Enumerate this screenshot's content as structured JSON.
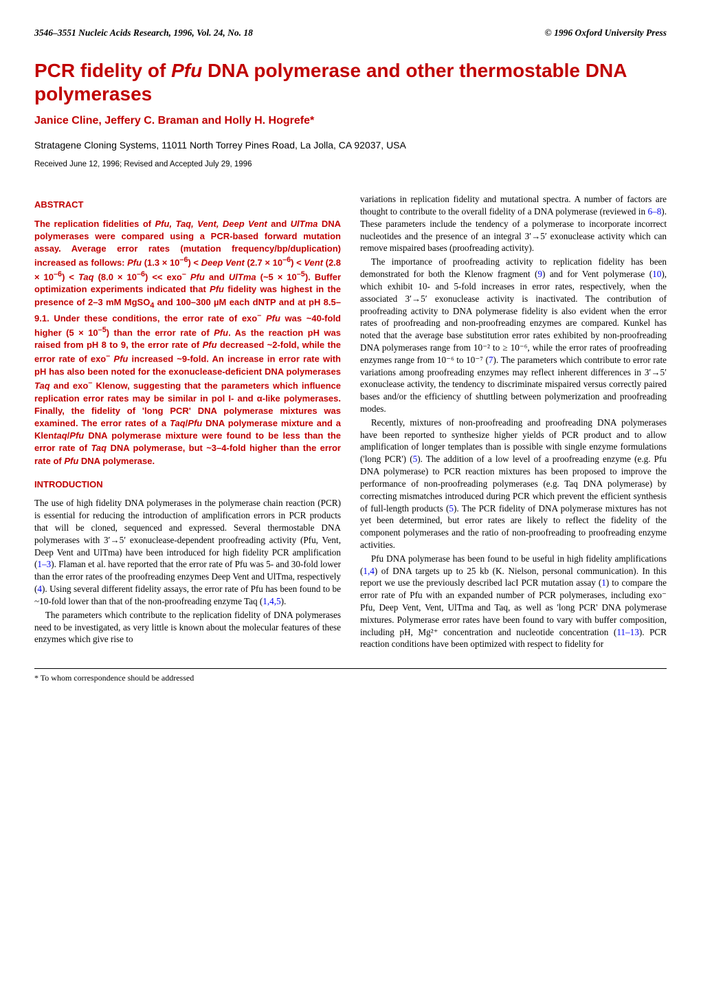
{
  "header": {
    "left": "3546–3551   Nucleic Acids Research, 1996, Vol. 24, No. 18",
    "right": "© 1996 Oxford University Press"
  },
  "title": "PCR fidelity of Pfu DNA polymerase and other thermostable DNA polymerases",
  "authors": "Janice Cline, Jeffery C. Braman and Holly H. Hogrefe*",
  "affiliation": "Stratagene Cloning Systems, 11011 North Torrey Pines Road, La Jolla, CA 92037, USA",
  "received": "Received June 12, 1996; Revised and Accepted July 29, 1996",
  "section_abstract_head": "ABSTRACT",
  "abstract_text": "The replication fidelities of Pfu, Taq, Vent, Deep Vent and UlTma DNA polymerases were compared using a PCR-based forward mutation assay. Average error rates (mutation frequency/bp/duplication) increased as follows: Pfu (1.3 × 10⁻⁶) < Deep Vent (2.7 × 10⁻⁶) < Vent (2.8 × 10⁻⁶) < Taq (8.0 × 10⁻⁶) << exo⁻ Pfu and UlTma (~5 × 10⁻⁵). Buffer optimization experiments indicated that Pfu fidelity was highest in the presence of 2–3 mM MgSO₄ and 100–300 µM each dNTP and at pH 8.5–9.1. Under these conditions, the error rate of exo⁻ Pfu was ~40-fold higher (5 × 10⁻⁵) than the error rate of Pfu. As the reaction pH was raised from pH 8 to 9, the error rate of Pfu decreased ~2-fold, while the error rate of exo⁻ Pfu increased ~9-fold. An increase in error rate with pH has also been noted for the exonuclease-deficient DNA polymerases Taq and exo⁻ Klenow, suggesting that the parameters which influence replication error rates may be similar in pol I- and α-like polymerases. Finally, the fidelity of 'long PCR' DNA polymerase mixtures was examined. The error rates of a Taq/Pfu DNA polymerase mixture and a Klentaq/Pfu DNA polymerase mixture were found to be less than the error rate of Taq DNA polymerase, but ~3–4-fold higher than the error rate of Pfu DNA polymerase.",
  "section_intro_head": "INTRODUCTION",
  "intro_p1_a": "The use of high fidelity DNA polymerases in the polymerase chain reaction (PCR) is essential for reducing the introduction of amplification errors in PCR products that will be cloned, sequenced and expressed. Several thermostable DNA polymerases with 3′→5′ exonuclease-dependent proofreading activity (Pfu, Vent, Deep Vent and UlTma) have been introduced for high fidelity PCR amplification (",
  "intro_p1_link1": "1–3",
  "intro_p1_b": "). Flaman et al. have reported that the error rate of Pfu was 5- and 30-fold lower than the error rates of the proofreading enzymes Deep Vent and UlTma, respectively (",
  "intro_p1_link2": "4",
  "intro_p1_c": "). Using several different fidelity assays, the error rate of Pfu has been found to be ~10-fold lower than that of the non-proofreading enzyme Taq (",
  "intro_p1_link3": "1,4,5",
  "intro_p1_d": ").",
  "intro_p2": "The parameters which contribute to the replication fidelity of DNA polymerases need to be investigated, as very little is known about the molecular features of these enzymes which give rise to",
  "right_p1_a": "variations in replication fidelity and mutational spectra. A number of factors are thought to contribute to the overall fidelity of a DNA polymerase (reviewed in ",
  "right_p1_link1": "6–8",
  "right_p1_b": "). These parameters include the tendency of a polymerase to incorporate incorrect nucleotides and the presence of an integral 3′→5′ exonuclease activity which can remove mispaired bases (proofreading activity).",
  "right_p2_a": "The importance of proofreading activity to replication fidelity has been demonstrated for both the Klenow fragment (",
  "right_p2_link1": "9",
  "right_p2_b": ") and for Vent polymerase (",
  "right_p2_link2": "10",
  "right_p2_c": "), which exhibit 10- and 5-fold increases in error rates, respectively, when the associated 3′→5′ exonuclease activity is inactivated. The contribution of proofreading activity to DNA polymerase fidelity is also evident when the error rates of proofreading and non-proofreading enzymes are compared. Kunkel has noted that the average base substitution error rates exhibited by non-proofreading DNA polymerases range from 10⁻² to ≥ 10⁻⁶, while the error rates of proofreading enzymes range from 10⁻⁶ to 10⁻⁷ (",
  "right_p2_link3": "7",
  "right_p2_d": "). The parameters which contribute to error rate variations among proofreading enzymes may reflect inherent differences in 3′→5′ exonuclease activity, the tendency to discriminate mispaired versus correctly paired bases and/or the efficiency of shuttling between polymerization and proofreading modes.",
  "right_p3_a": "Recently, mixtures of non-proofreading and proofreading DNA polymerases have been reported to synthesize higher yields of PCR product and to allow amplification of longer templates than is possible with single enzyme formulations ('long PCR') (",
  "right_p3_link1": "5",
  "right_p3_b": "). The addition of a low level of a proofreading enzyme (e.g. Pfu DNA polymerase) to PCR reaction mixtures has been proposed to improve the performance of non-proofreading polymerases (e.g. Taq DNA polymerase) by correcting mismatches introduced during PCR which prevent the efficient synthesis of full-length products (",
  "right_p3_link2": "5",
  "right_p3_c": "). The PCR fidelity of DNA polymerase mixtures has not yet been determined, but error rates are likely to reflect the fidelity of the component polymerases and the ratio of non-proofreading to proofreading enzyme activities.",
  "right_p4_a": "Pfu DNA polymerase has been found to be useful in high fidelity amplifications (",
  "right_p4_link1": "1,4",
  "right_p4_b": ") of DNA targets up to 25 kb (K. Nielson, personal communication). In this report we use the previously described lacI PCR mutation assay (",
  "right_p4_link2": "1",
  "right_p4_c": ") to compare the error rate of Pfu with an expanded number of PCR polymerases, including exo⁻ Pfu, Deep Vent, Vent, UlTma and Taq, as well as 'long PCR' DNA polymerase mixtures. Polymerase error rates have been found to vary with buffer composition, including pH, Mg²⁺ concentration and nucleotide concentration (",
  "right_p4_link3": "11–13",
  "right_p4_d": "). PCR reaction conditions have been optimized with respect to fidelity for",
  "footer": "* To whom correspondence should be addressed"
}
